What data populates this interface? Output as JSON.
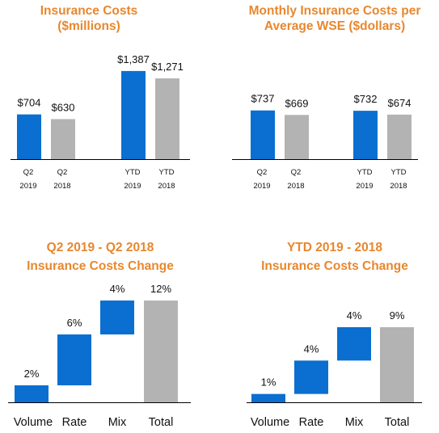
{
  "colors": {
    "title": "#e8872e",
    "blue": "#0a6fd0",
    "gray": "#b3b3b3",
    "axis": "#000000"
  },
  "chart_data": [
    {
      "type": "bar",
      "title": "Insurance Costs",
      "subtitle": "($millions)",
      "categories": [
        [
          "Q2",
          "2019"
        ],
        [
          "Q2",
          "2018"
        ],
        [
          "YTD",
          "2019"
        ],
        [
          "YTD",
          "2018"
        ]
      ],
      "values": [
        704,
        630,
        1387,
        1271
      ],
      "value_labels": [
        "$704",
        "$630",
        "$1,387",
        "$1,271"
      ],
      "bar_colors": [
        "blue",
        "gray",
        "blue",
        "gray"
      ],
      "ylim": [
        0,
        1500
      ],
      "grid": false
    },
    {
      "type": "bar",
      "title": "Monthly Insurance Costs per",
      "subtitle": "Average WSE ($dollars)",
      "categories": [
        [
          "Q2",
          "2019"
        ],
        [
          "Q2",
          "2018"
        ],
        [
          "YTD",
          "2019"
        ],
        [
          "YTD",
          "2018"
        ]
      ],
      "values": [
        737,
        669,
        732,
        674
      ],
      "value_labels": [
        "$737",
        "$669",
        "$732",
        "$674"
      ],
      "bar_colors": [
        "blue",
        "gray",
        "blue",
        "gray"
      ],
      "ylim": [
        0,
        1500
      ],
      "grid": false
    },
    {
      "type": "waterfall",
      "title": "Q2 2019 - Q2 2018",
      "subtitle": "Insurance Costs Change",
      "categories": [
        "Volume",
        "Rate",
        "Mix",
        "Total"
      ],
      "values": [
        2,
        6,
        4,
        12
      ],
      "value_labels": [
        "2%",
        "6%",
        "4%",
        "12%"
      ],
      "is_total": [
        false,
        false,
        false,
        true
      ],
      "ylim": [
        0,
        12
      ],
      "grid": false
    },
    {
      "type": "waterfall",
      "title": "YTD 2019 -  2018",
      "subtitle": "Insurance Costs Change",
      "categories": [
        "Volume",
        "Rate",
        "Mix",
        "Total"
      ],
      "values": [
        1,
        4,
        4,
        9
      ],
      "value_labels": [
        "1%",
        "4%",
        "4%",
        "9%"
      ],
      "is_total": [
        false,
        false,
        false,
        true
      ],
      "ylim": [
        0,
        12
      ],
      "grid": false
    }
  ]
}
